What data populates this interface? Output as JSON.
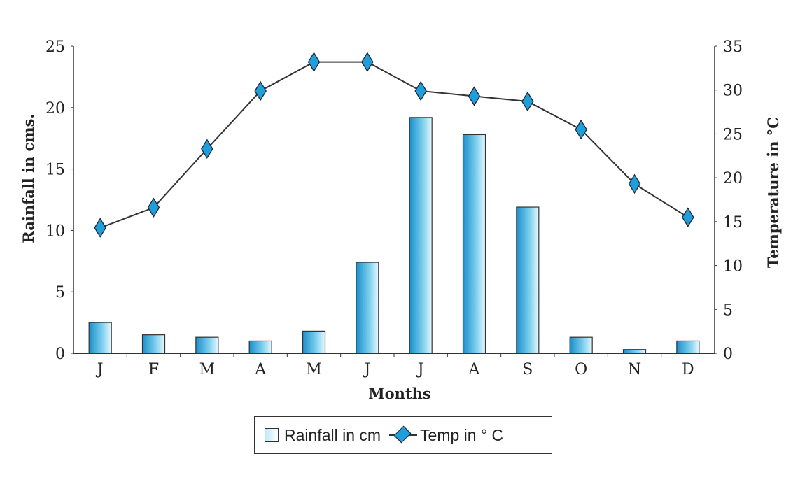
{
  "chart_data": {
    "type": "bar+line",
    "categories": [
      "J",
      "F",
      "M",
      "A",
      "M",
      "J",
      "J",
      "A",
      "S",
      "O",
      "N",
      "D"
    ],
    "series": [
      {
        "name": "Rainfall in cm",
        "type": "bar",
        "axis": "left",
        "values": [
          2.5,
          1.5,
          1.3,
          1.0,
          1.8,
          7.4,
          19.2,
          17.8,
          11.9,
          1.3,
          0.3,
          1.0
        ]
      },
      {
        "name": "Temp in ° C",
        "type": "line",
        "axis": "right",
        "values": [
          14.3,
          16.6,
          23.3,
          29.9,
          33.2,
          33.2,
          29.9,
          29.3,
          28.7,
          25.5,
          19.3,
          15.5
        ]
      }
    ],
    "xlabel": "Months",
    "ylabel": "Rainfall in cms.",
    "ylabel_right": "Temperature in °C",
    "ylim": [
      0,
      25
    ],
    "ylim_right": [
      0,
      35
    ],
    "yticks": [
      "0",
      "5",
      "10",
      "15",
      "20",
      "25"
    ],
    "yticks_right": [
      "0",
      "5",
      "10",
      "15",
      "20",
      "25",
      "30",
      "35"
    ],
    "legend_position": "bottom-center",
    "grid": false
  },
  "colors": {
    "bar": "#1e9fd9",
    "line": "#333333",
    "marker": "#1e9fd9"
  }
}
